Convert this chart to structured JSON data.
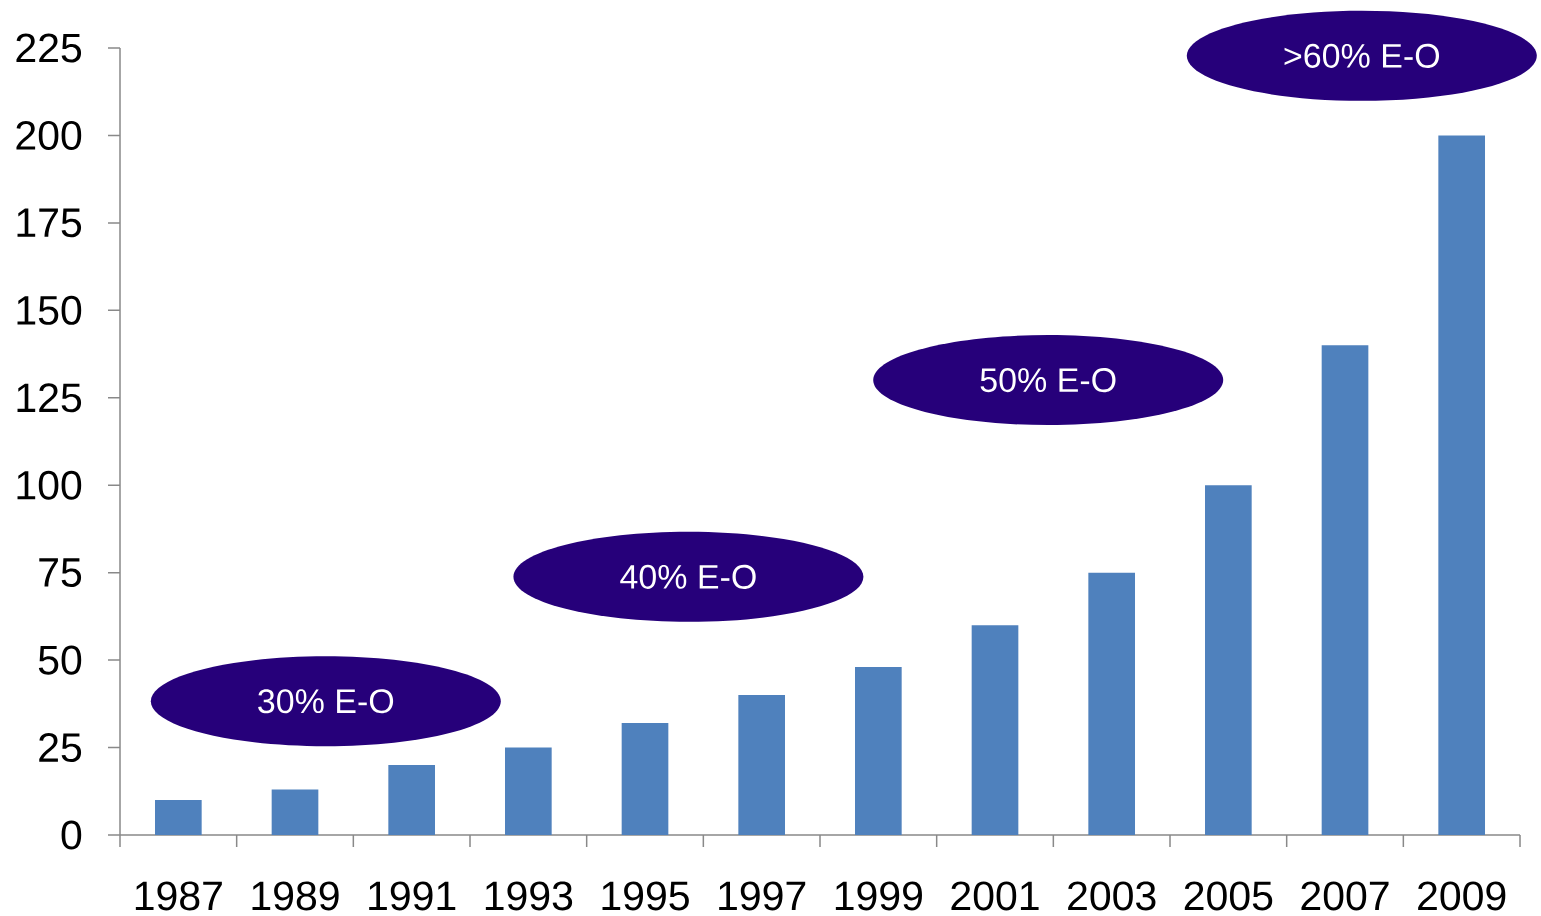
{
  "chart_data": {
    "type": "bar",
    "categories": [
      "1987",
      "1989",
      "1991",
      "1993",
      "1995",
      "1997",
      "1999",
      "2001",
      "2003",
      "2005",
      "2007",
      "2009"
    ],
    "values": [
      10,
      13,
      20,
      25,
      32,
      40,
      48,
      60,
      75,
      100,
      140,
      200
    ],
    "color": "#4f81bd",
    "ylim": [
      0,
      225
    ],
    "yticks": [
      0,
      25,
      50,
      75,
      100,
      125,
      150,
      175,
      200,
      225
    ],
    "annotations": [
      "30% E-O",
      "40% E-O",
      "50% E-O",
      ">60% E-O"
    ]
  }
}
